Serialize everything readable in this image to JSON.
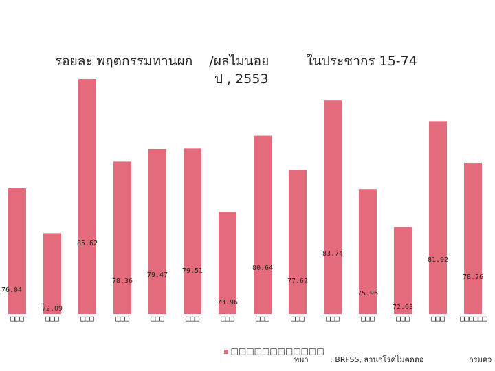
{
  "chart_data": {
    "type": "bar",
    "title_line1": "รอยละ พฤตกรรมทานผก    /ผลไมนอย         ในประชากร 15-74",
    "title_line2": "ป , 2553",
    "categories": [
      "□□□",
      "□□□",
      "□□□",
      "□□□",
      "□□□",
      "□□□",
      "□□□",
      "□□□",
      "□□□",
      "□□□",
      "□□□",
      "□□□",
      "□□□",
      "□□□□□□"
    ],
    "values": [
      76.04,
      72.09,
      85.62,
      78.36,
      79.47,
      79.51,
      73.96,
      80.64,
      77.62,
      83.74,
      75.96,
      72.63,
      81.92,
      78.26
    ],
    "value_labels": [
      "76.04",
      "72.09",
      "85.62",
      "78.36",
      "79.47",
      "79.51",
      "73.96",
      "80.64",
      "77.62",
      "83.74",
      "75.96",
      "72.63",
      "81.92",
      "78.26"
    ],
    "bar_color": "#e46b7c",
    "ylim": [
      65,
      90
    ],
    "legend": "□□□□□□□□□□□□",
    "legend_placement": "bottom"
  },
  "source": {
    "label": "ทมา",
    "text": ": BRFSS, สานกโรคไมตดตอ",
    "org": "กรมคว"
  }
}
